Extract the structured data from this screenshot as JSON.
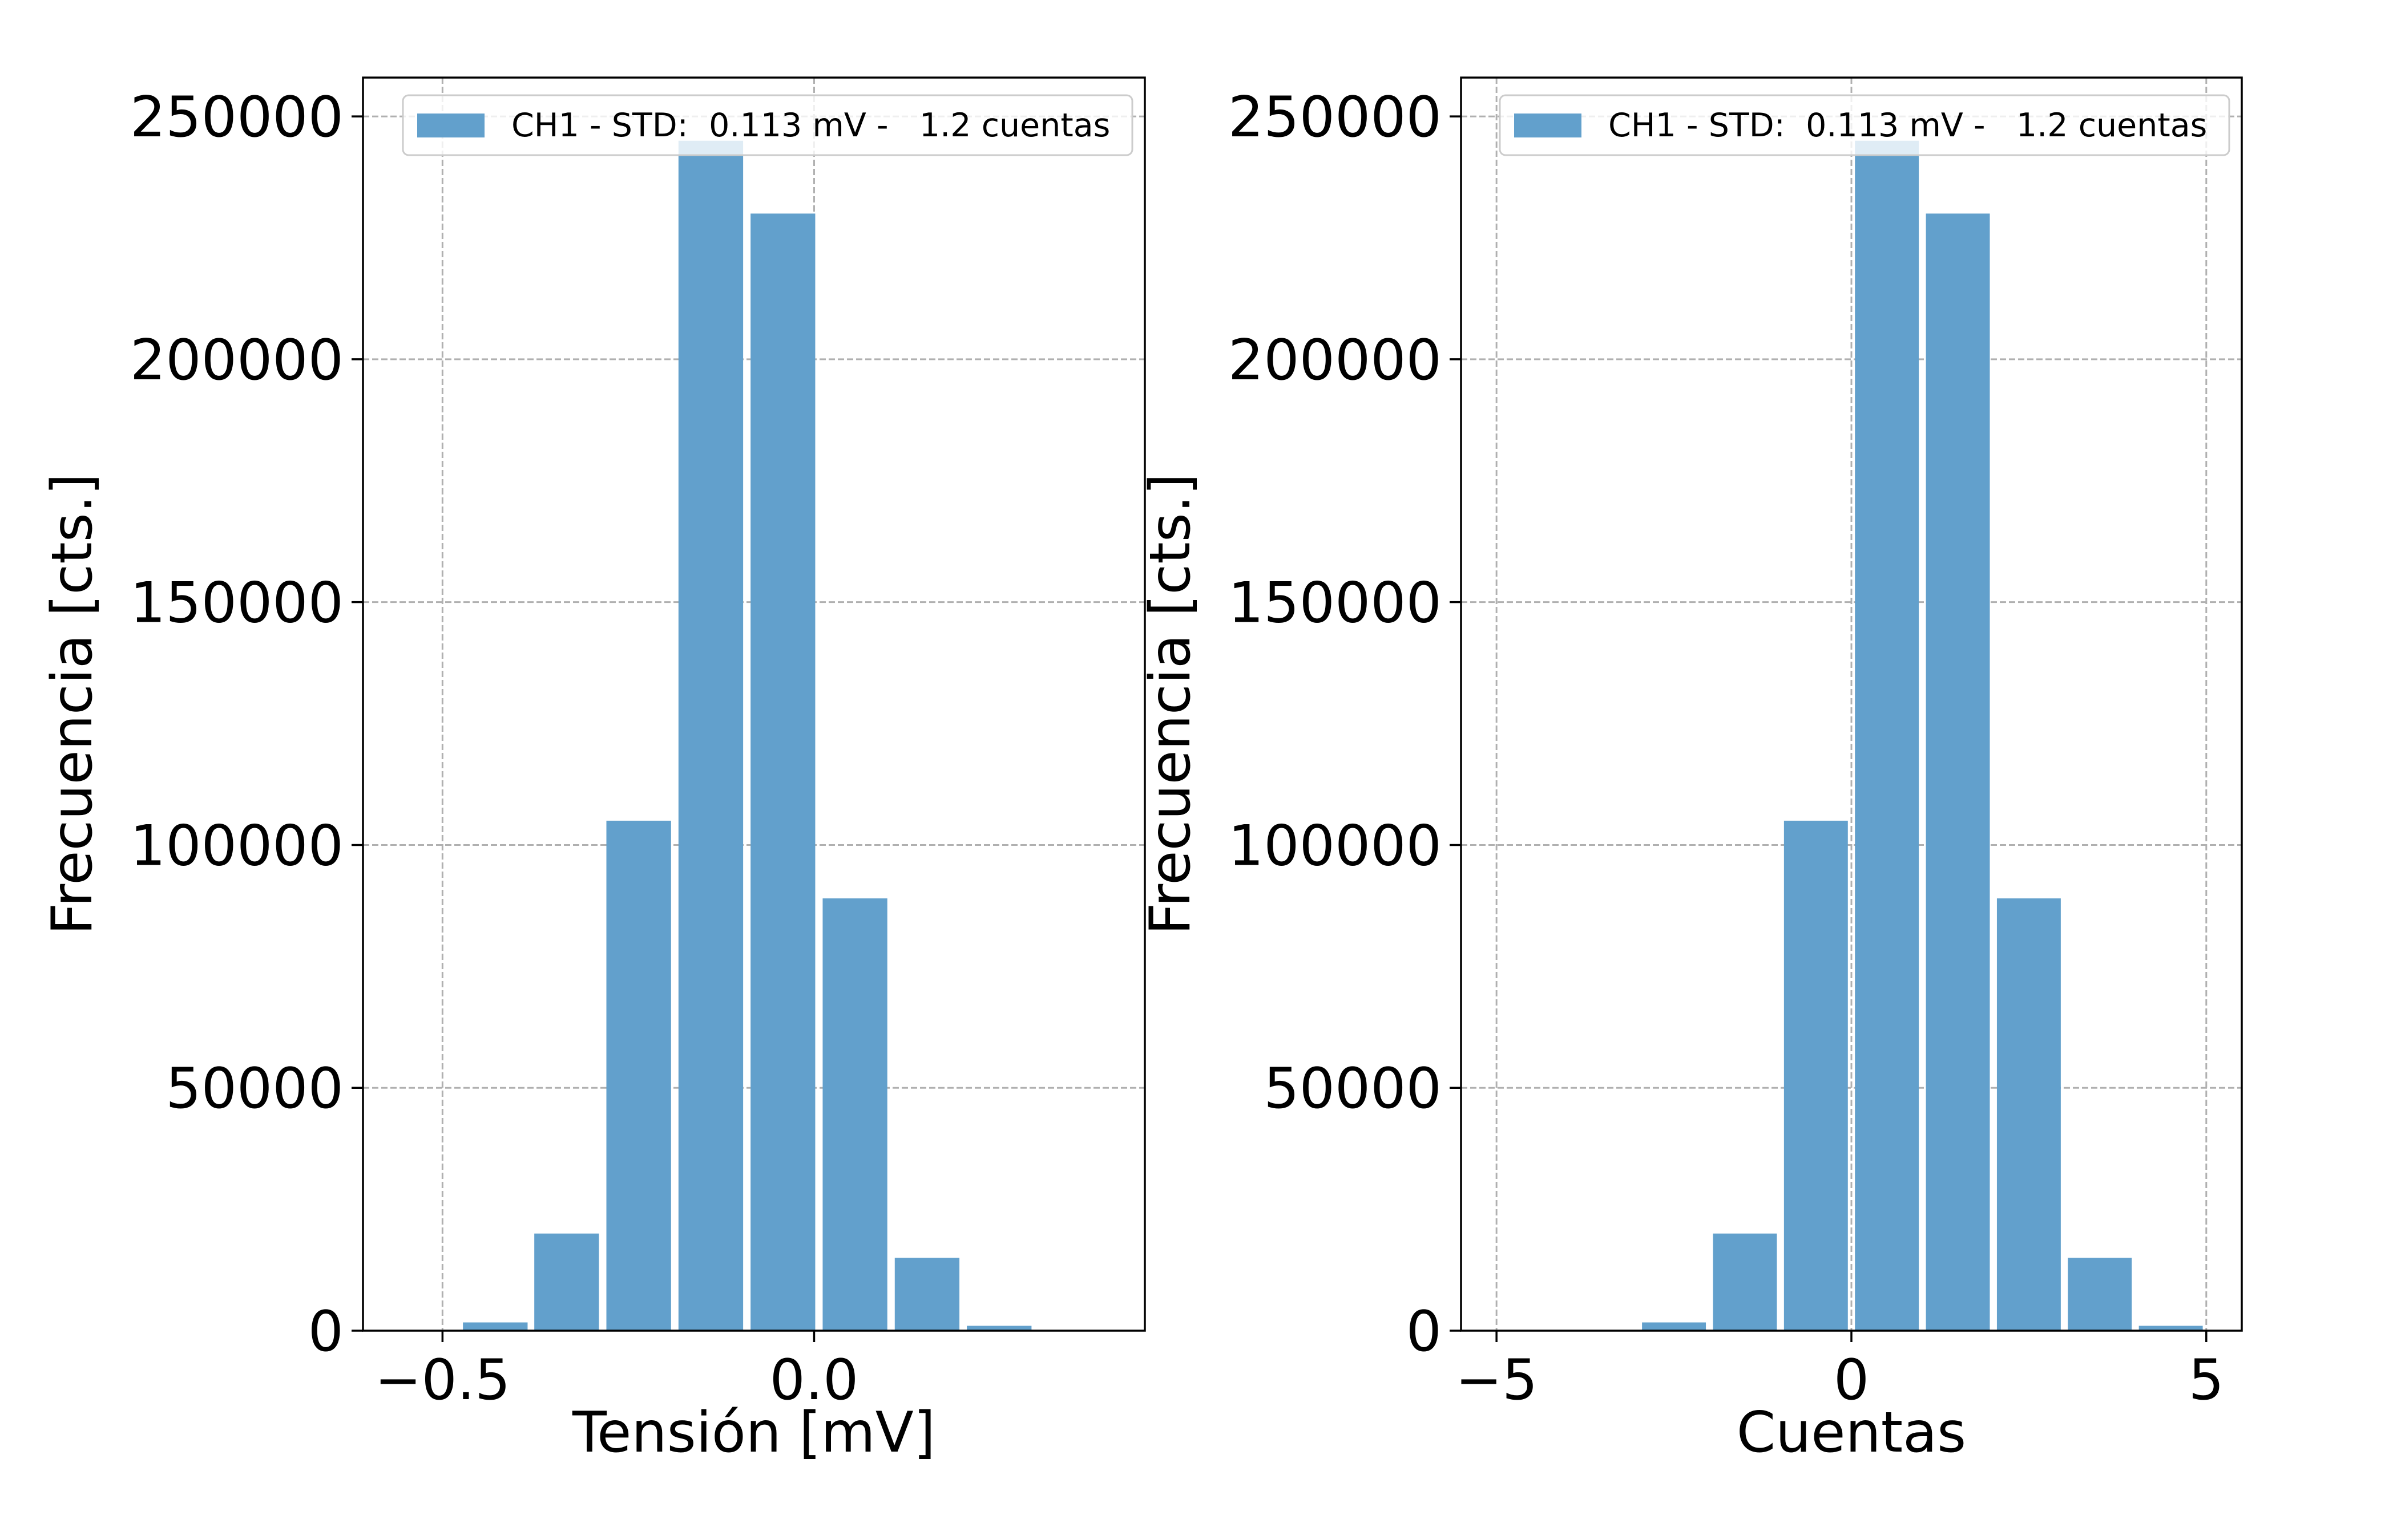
{
  "colors": {
    "bar": "#62a0cc",
    "grid": "#b0b0b0",
    "axes": "#000000",
    "legend_border": "#cccccc"
  },
  "chart_data": [
    {
      "type": "bar",
      "title": "",
      "xlabel": "Tensión [mV]",
      "ylabel": "Frecuencia [cts.]",
      "xlim": [
        -0.607,
        0.445
      ],
      "ylim": [
        0,
        258000
      ],
      "xticks": [
        -0.5,
        0.0
      ],
      "xtick_labels": [
        "−0.5",
        "0.0"
      ],
      "yticks": [
        0,
        50000,
        100000,
        150000,
        200000,
        250000
      ],
      "ytick_labels": [
        "0",
        "50000",
        "100000",
        "150000",
        "200000",
        "250000"
      ],
      "grid": true,
      "legend_position": "top-right",
      "bar_width": 0.087,
      "series": [
        {
          "name": "CH1 - STD:  0.113 mV -   1.2 cuentas",
          "x": [
            -0.429,
            -0.333,
            -0.236,
            -0.139,
            -0.042,
            0.055,
            0.152,
            0.249
          ],
          "values": [
            1700,
            20000,
            105000,
            245000,
            230000,
            89000,
            15000,
            1000
          ]
        }
      ]
    },
    {
      "type": "bar",
      "title": "",
      "xlabel": "Cuentas",
      "ylabel": "Frecuencia [cts.]",
      "xlim": [
        -5.5,
        5.5
      ],
      "ylim": [
        0,
        258000
      ],
      "xticks": [
        -5,
        0,
        5
      ],
      "xtick_labels": [
        "−5",
        "0",
        "5"
      ],
      "yticks": [
        0,
        50000,
        100000,
        150000,
        200000,
        250000
      ],
      "ytick_labels": [
        "0",
        "50000",
        "100000",
        "150000",
        "200000",
        "250000"
      ],
      "grid": true,
      "legend_position": "top-right",
      "bar_width": 0.9,
      "series": [
        {
          "name": "CH1 - STD:  0.113 mV -   1.2 cuentas",
          "x": [
            -2.5,
            -1.5,
            -0.5,
            0.5,
            1.5,
            2.5,
            3.5,
            4.5
          ],
          "values": [
            1700,
            20000,
            105000,
            245000,
            230000,
            89000,
            15000,
            1000
          ]
        }
      ]
    }
  ]
}
